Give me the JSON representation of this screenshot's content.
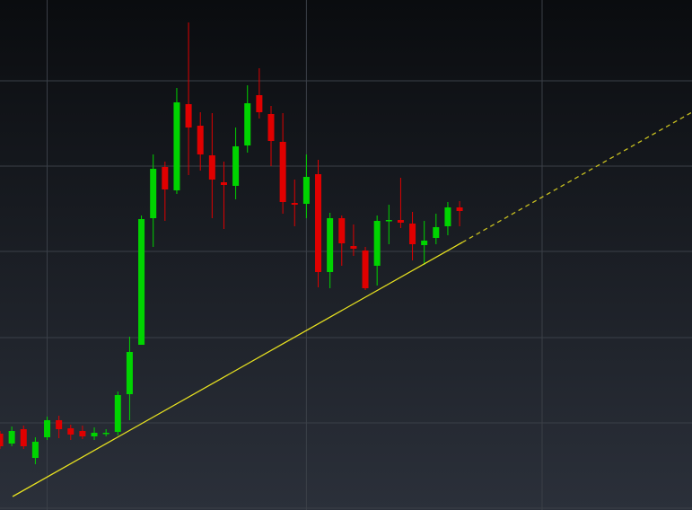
{
  "chart_data": {
    "type": "candlestick",
    "x": [
      0,
      1,
      2,
      3,
      4,
      5,
      6,
      7,
      8,
      9,
      10,
      11,
      12,
      13,
      14,
      15,
      16,
      17,
      18,
      19,
      20,
      21,
      22,
      23,
      24,
      25,
      26,
      27,
      28,
      29,
      30,
      31,
      32,
      33,
      34,
      35,
      36,
      37,
      38,
      39
    ],
    "open": [
      85,
      74,
      90,
      58,
      81,
      100,
      91,
      88,
      82,
      85,
      87,
      129,
      184,
      325,
      382,
      356,
      452,
      428,
      395,
      365,
      361,
      406,
      462,
      441,
      410,
      342,
      341,
      374,
      265,
      325,
      294,
      289,
      272,
      322,
      323,
      319,
      295,
      303,
      316,
      337
    ],
    "high": [
      88,
      93,
      94,
      81,
      104,
      105,
      95,
      94,
      92,
      90,
      132,
      193,
      328,
      396,
      388,
      470,
      543,
      443,
      442,
      388,
      426,
      473,
      492,
      450,
      442,
      368,
      396,
      390,
      331,
      328,
      318,
      293,
      328,
      340,
      370,
      332,
      322,
      330,
      343,
      344
    ],
    "low": [
      68,
      71,
      68,
      51,
      78,
      80,
      78,
      79,
      78,
      82,
      83,
      100,
      184,
      293,
      322,
      352,
      373,
      378,
      325,
      313,
      346,
      398,
      436,
      383,
      330,
      316,
      325,
      248,
      247,
      272,
      283,
      245,
      250,
      296,
      314,
      278,
      273,
      296,
      306,
      316
    ],
    "close": [
      71,
      88,
      71,
      76,
      100,
      90,
      84,
      82,
      86,
      86,
      128,
      176,
      324,
      380,
      357,
      454,
      426,
      396,
      368,
      362,
      405,
      453,
      443,
      411,
      343,
      340,
      371,
      265,
      325,
      297,
      291,
      247,
      322,
      323,
      320,
      296,
      300,
      315,
      337,
      333
    ],
    "up_color": "#00d400",
    "down_color": "#e00000",
    "xlim": [
      0,
      58.72
    ],
    "ylim": [
      0,
      568
    ],
    "xticks": [
      4,
      26,
      46
    ],
    "yticks": [
      2,
      97,
      192,
      288,
      383,
      478
    ],
    "grid": true,
    "grid_color": "#3b4048",
    "trendlines": [
      {
        "x": [
          1.07,
          39.22
        ],
        "y": [
          15,
          298
        ],
        "color": "#e6e020",
        "dashed": false
      },
      {
        "x": [
          39.22,
          58.72
        ],
        "y": [
          298,
          443
        ],
        "color": "#c8c020",
        "dashed": true
      }
    ]
  }
}
